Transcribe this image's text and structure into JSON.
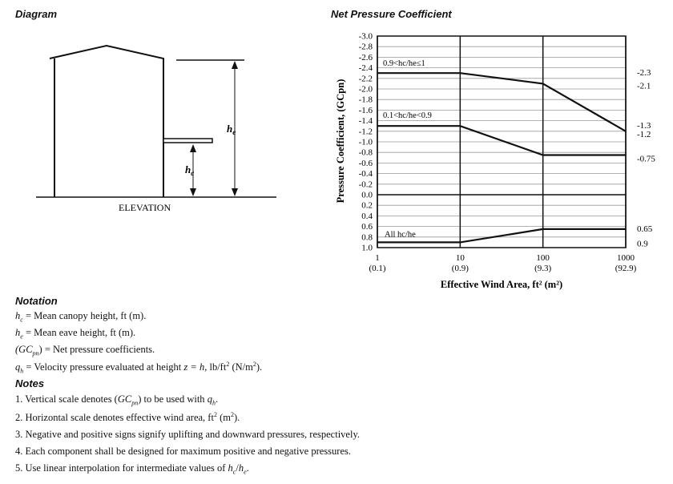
{
  "diagram": {
    "title": "Diagram",
    "elevation_label": "ELEVATION",
    "he_label": "h",
    "he_sub": "e",
    "hc_label": "h",
    "hc_sub": "c"
  },
  "chart_title": "Net Pressure Coefficient",
  "chart_data": {
    "type": "line",
    "title": "Net Pressure Coefficient",
    "xlabel": "Effective Wind Area, ft² (m²)",
    "ylabel": "Pressure Coefficient, (GCpn)",
    "x_scale": "log",
    "xlim": [
      1,
      1000
    ],
    "ylim": [
      -3.0,
      1.0
    ],
    "y_inverted": true,
    "x_ticks": [
      {
        "value": 1,
        "label": "1",
        "sublabel": "(0.1)"
      },
      {
        "value": 10,
        "label": "10",
        "sublabel": "(0.9)"
      },
      {
        "value": 100,
        "label": "100",
        "sublabel": "(9.3)"
      },
      {
        "value": 1000,
        "label": "1000",
        "sublabel": "(92.9)"
      }
    ],
    "y_ticks": [
      {
        "value": -3.0,
        "label": "-3.0"
      },
      {
        "value": -2.8,
        "label": "-2.8"
      },
      {
        "value": -2.6,
        "label": "-2.6"
      },
      {
        "value": -2.4,
        "label": "-2.4"
      },
      {
        "value": -2.2,
        "label": "-2.2"
      },
      {
        "value": -2.0,
        "label": "-2.0"
      },
      {
        "value": -1.8,
        "label": "-1.8"
      },
      {
        "value": -1.6,
        "label": "-1.6"
      },
      {
        "value": -1.4,
        "label": "-1.4"
      },
      {
        "value": -1.2,
        "label": "-1.2"
      },
      {
        "value": -1.0,
        "label": "-1.0"
      },
      {
        "value": -0.8,
        "label": "-0.8"
      },
      {
        "value": -0.6,
        "label": "-0.6"
      },
      {
        "value": -0.4,
        "label": "-0.4"
      },
      {
        "value": -0.2,
        "label": "-0.2"
      },
      {
        "value": 0.0,
        "label": "0.0"
      },
      {
        "value": 0.2,
        "label": "0.2"
      },
      {
        "value": 0.4,
        "label": "0.4"
      },
      {
        "value": 0.6,
        "label": "0.6"
      },
      {
        "value": 0.8,
        "label": "0.8"
      },
      {
        "value": 1.0,
        "label": "1.0"
      }
    ],
    "grid": true,
    "series": [
      {
        "name": "0.9<hc/he≤1",
        "x": [
          1,
          10,
          100,
          1000
        ],
        "y": [
          -2.3,
          -2.3,
          -2.1,
          -1.2
        ]
      },
      {
        "name": "0.1<hc/he<0.9",
        "x": [
          1,
          10,
          100,
          1000
        ],
        "y": [
          -1.3,
          -1.3,
          -0.75,
          -0.75
        ]
      },
      {
        "name": "All hc/he",
        "x": [
          1,
          10,
          100,
          1000
        ],
        "y": [
          0.9,
          0.9,
          0.65,
          0.65
        ]
      }
    ],
    "right_annotations": [
      {
        "y": -2.3,
        "label": "-2.3"
      },
      {
        "y": -2.1,
        "label": "-2.1"
      },
      {
        "y": -1.3,
        "label": "-1.3"
      },
      {
        "y": -1.2,
        "label": "-1.2"
      },
      {
        "y": -0.75,
        "label": "-0.75"
      },
      {
        "y": 0.65,
        "label": "0.65"
      },
      {
        "y": 0.9,
        "label": "0.9"
      }
    ]
  },
  "notation": {
    "title": "Notation",
    "hc": {
      "sym": "h",
      "sub": "c",
      "text": " = Mean canopy height, ft (m)."
    },
    "he": {
      "sym": "h",
      "sub": "e",
      "text": " = Mean eave height, ft (m)."
    },
    "gc": {
      "pre": "(GC",
      "sub": "pn",
      "post": ")",
      "text": " = Net pressure coefficients."
    },
    "qh": {
      "sym": "q",
      "sub": "h",
      "text_a": " = Velocity pressure evaluated at height ",
      "eq": "z = h",
      "text_b": ", lb/ft",
      "sup_a": "2",
      "text_c": " (N/m",
      "sup_b": "2",
      "text_d": ")."
    }
  },
  "notes": {
    "title": "Notes",
    "n1": {
      "text_a": "1. Vertical scale denotes (",
      "sym": "GC",
      "sub": "pn",
      "text_b": ") to be used with ",
      "q": "q",
      "qsub": "h",
      "text_c": "."
    },
    "n2": {
      "text_a": "2. Horizontal scale denotes effective wind area,  ft",
      "sup_a": "2",
      "text_b": " (m",
      "sup_b": "2",
      "text_c": ")."
    },
    "n3": "3. Negative and positive signs signify uplifting and downward pressures, respectively.",
    "n4": "4. Each component shall be designed for maximum positive and negative pressures.",
    "n5": {
      "text_a": "5. Use linear interpolation for intermediate values of ",
      "h1": "h",
      "s1": "c",
      "slash": "/",
      "h2": "h",
      "s2": "e",
      "text_b": "."
    }
  }
}
